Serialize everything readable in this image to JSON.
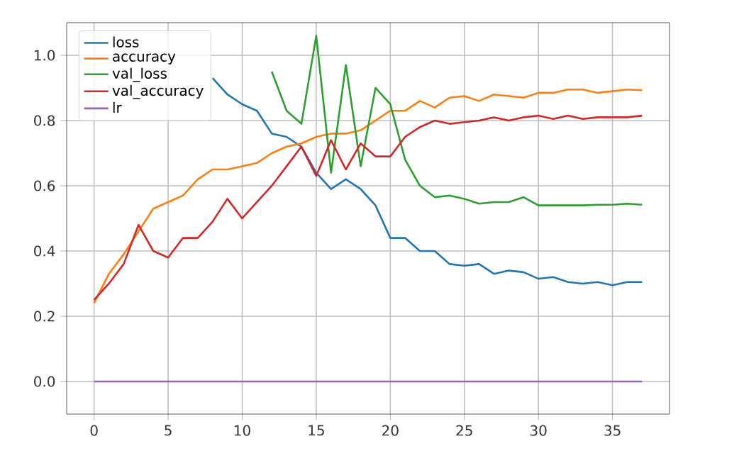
{
  "chart_data": {
    "type": "line",
    "x": [
      0,
      1,
      2,
      3,
      4,
      5,
      6,
      7,
      8,
      9,
      10,
      11,
      12,
      13,
      14,
      15,
      16,
      17,
      18,
      19,
      20,
      21,
      22,
      23,
      24,
      25,
      26,
      27,
      28,
      29,
      30,
      31,
      32,
      33,
      34,
      35,
      36,
      37
    ],
    "series": [
      {
        "name": "loss",
        "color": "#1f77b4",
        "values": [
          null,
          null,
          null,
          null,
          null,
          null,
          null,
          null,
          0.93,
          0.88,
          0.85,
          0.83,
          0.76,
          0.75,
          0.72,
          0.64,
          0.59,
          0.62,
          0.59,
          0.54,
          0.44,
          0.44,
          0.4,
          0.4,
          0.36,
          0.355,
          0.36,
          0.33,
          0.34,
          0.335,
          0.315,
          0.32,
          0.305,
          0.3,
          0.305,
          0.295,
          0.305,
          0.305
        ]
      },
      {
        "name": "accuracy",
        "color": "#ff7f0e",
        "values": [
          0.24,
          0.33,
          0.39,
          0.46,
          0.53,
          0.55,
          0.57,
          0.62,
          0.65,
          0.65,
          0.66,
          0.67,
          0.7,
          0.72,
          0.73,
          0.75,
          0.76,
          0.76,
          0.77,
          0.8,
          0.83,
          0.83,
          0.86,
          0.84,
          0.87,
          0.875,
          0.86,
          0.88,
          0.875,
          0.87,
          0.885,
          0.885,
          0.895,
          0.895,
          0.885,
          0.89,
          0.895,
          0.893
        ]
      },
      {
        "name": "val_loss",
        "color": "#2ca02c",
        "values": [
          null,
          null,
          null,
          null,
          null,
          null,
          null,
          null,
          null,
          null,
          null,
          null,
          0.95,
          0.83,
          0.79,
          1.06,
          0.64,
          0.97,
          0.66,
          0.9,
          0.85,
          0.68,
          0.6,
          0.565,
          0.57,
          0.56,
          0.545,
          0.55,
          0.55,
          0.565,
          0.54,
          0.54,
          0.54,
          0.54,
          0.542,
          0.542,
          0.545,
          0.542
        ]
      },
      {
        "name": "val_accuracy",
        "color": "#d62728",
        "values": [
          0.25,
          0.3,
          0.36,
          0.48,
          0.4,
          0.38,
          0.44,
          0.44,
          0.49,
          0.56,
          0.5,
          0.55,
          0.6,
          0.66,
          0.72,
          0.63,
          0.74,
          0.65,
          0.73,
          0.69,
          0.69,
          0.75,
          0.78,
          0.8,
          0.79,
          0.795,
          0.8,
          0.81,
          0.8,
          0.81,
          0.815,
          0.805,
          0.815,
          0.805,
          0.81,
          0.81,
          0.81,
          0.815
        ]
      },
      {
        "name": "lr",
        "color": "#9467bd",
        "values": [
          0,
          0,
          0,
          0,
          0,
          0,
          0,
          0,
          0,
          0,
          0,
          0,
          0,
          0,
          0,
          0,
          0,
          0,
          0,
          0,
          0,
          0,
          0,
          0,
          0,
          0,
          0,
          0,
          0,
          0,
          0,
          0,
          0,
          0,
          0,
          0,
          0,
          0
        ]
      }
    ],
    "xlim": [
      -1.85,
      38.85
    ],
    "xticks": [
      0,
      5,
      10,
      15,
      20,
      25,
      30,
      35
    ],
    "ylim": [
      -0.1,
      1.1
    ],
    "yticks": [
      {
        "value": 0,
        "label": "0.0"
      },
      {
        "value": 0.2,
        "label": "0.2"
      },
      {
        "value": 0.4,
        "label": "0.4"
      },
      {
        "value": 0.6,
        "label": "0.6"
      },
      {
        "value": 0.8,
        "label": "0.8"
      },
      {
        "value": 1.0,
        "label": "1.0"
      }
    ],
    "grid": true,
    "legend": "top left",
    "marker": "none",
    "line_style": "solid"
  }
}
